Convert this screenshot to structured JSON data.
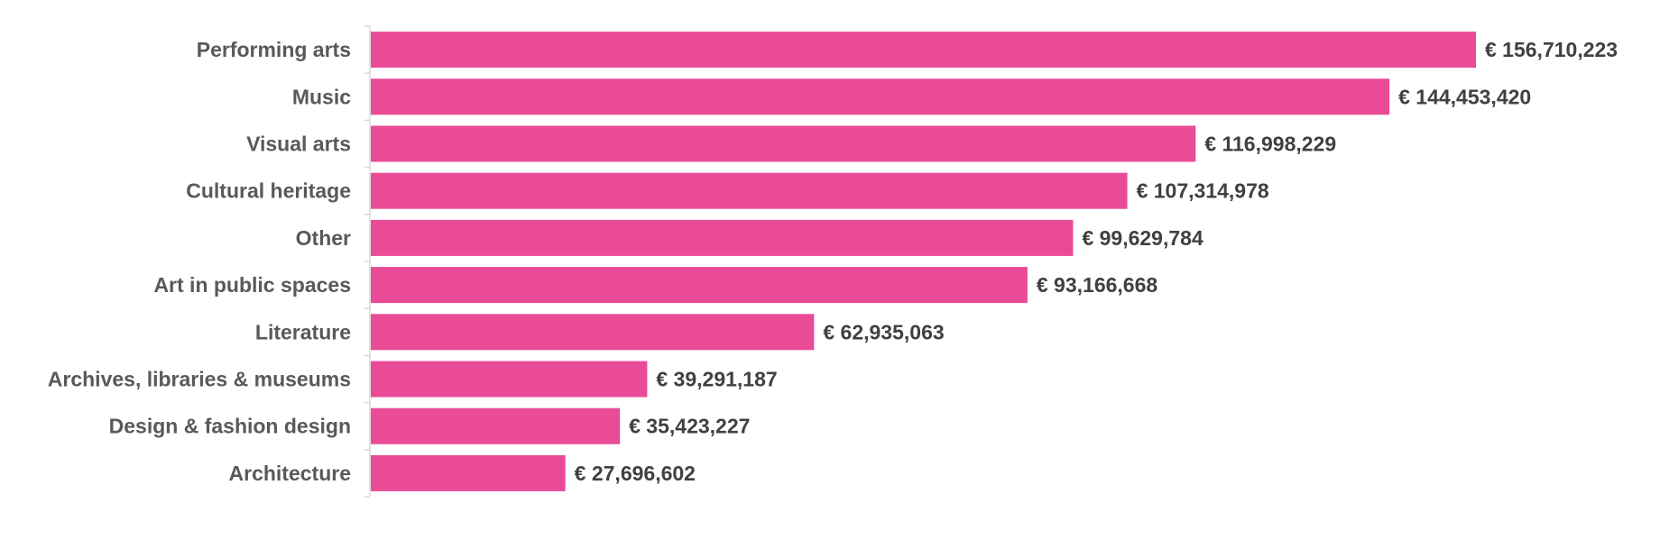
{
  "chart_data": {
    "type": "bar",
    "orientation": "horizontal",
    "categories": [
      "Performing arts",
      "Music",
      "Visual arts",
      "Cultural heritage",
      "Other",
      "Art in public spaces",
      "Literature",
      "Archives, libraries & museums",
      "Design & fashion design",
      "Architecture"
    ],
    "values": [
      156710223,
      144453420,
      116998229,
      107314978,
      99629784,
      93166668,
      62935063,
      39291187,
      35423227,
      27696602
    ],
    "value_labels": [
      "€ 156,710,223",
      "€ 144,453,420",
      "€ 116,998,229",
      "€ 107,314,978",
      "€ 99,629,784",
      "€ 93,166,668",
      "€ 62,935,063",
      "€ 39,291,187",
      "€ 35,423,227",
      "€ 27,696,602"
    ],
    "xlim": [
      0,
      156710223
    ],
    "grid": false,
    "legend": "none",
    "colors": {
      "bar": "#e94b97",
      "category_text": "#595959",
      "value_text": "#404040",
      "axis": "#d9d9d9"
    }
  }
}
